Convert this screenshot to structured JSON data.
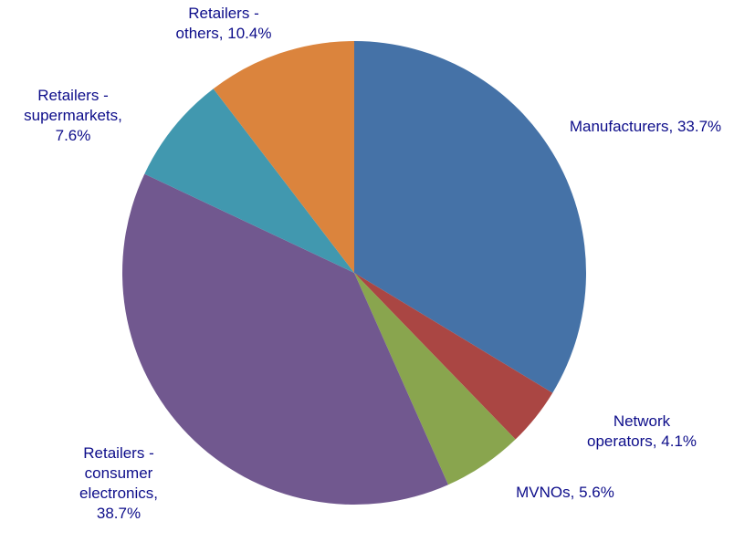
{
  "chart_data": {
    "type": "pie",
    "categories": [
      "Manufacturers,",
      "Network operators,",
      "MVNOs,",
      "Retailers - consumer electronics,",
      "Retailers - supermarkets,",
      "Retailers - others,"
    ],
    "values": [
      33.7,
      4.1,
      5.6,
      38.7,
      7.6,
      10.4
    ],
    "value_labels": [
      "33.7%",
      "4.1%",
      "5.6%",
      "38.7%",
      "7.6%",
      "10.4%"
    ],
    "colors": [
      "#4572a7",
      "#aa4643",
      "#89a54e",
      "#71588f",
      "#4198af",
      "#db843d"
    ]
  }
}
